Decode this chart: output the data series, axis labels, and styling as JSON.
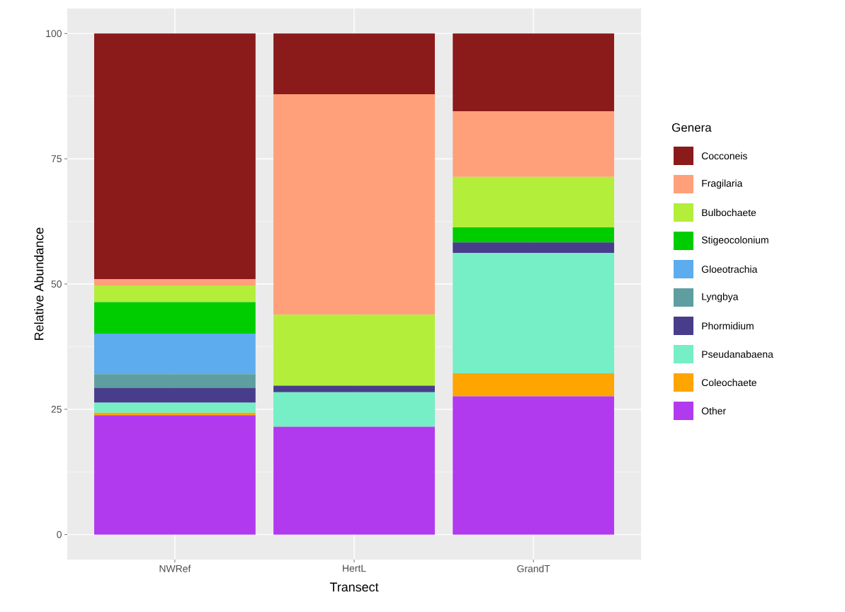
{
  "chart_data": {
    "type": "bar",
    "stacked": true,
    "xlabel": "Transect",
    "ylabel": "Relative Abundance",
    "legend_title": "Genera",
    "legend": "right",
    "grid": true,
    "categories": [
      "NWRef",
      "HertL",
      "GrandT"
    ],
    "ylim": [
      -5,
      105
    ],
    "yticks": [
      0,
      25,
      50,
      75,
      100
    ],
    "series": [
      {
        "name": "Other",
        "color": "#b23aee",
        "values": [
          23.8,
          21.5,
          27.6
        ]
      },
      {
        "name": "Coleochaete",
        "color": "#ffa500",
        "values": [
          0.5,
          0,
          4.6
        ]
      },
      {
        "name": "Pseudanabaena",
        "color": "#76eec6",
        "values": [
          2.0,
          6.9,
          24.0
        ]
      },
      {
        "name": "Phormidium",
        "color": "#483d8b",
        "values": [
          3.0,
          1.3,
          2.1
        ]
      },
      {
        "name": "Lyngbya",
        "color": "#5f9ea0",
        "values": [
          2.7,
          0,
          0
        ]
      },
      {
        "name": "Gloeotrachia",
        "color": "#5cacee",
        "values": [
          8.1,
          0,
          0
        ]
      },
      {
        "name": "Stigeocolonium",
        "color": "#00cd00",
        "values": [
          6.3,
          0,
          3.0
        ]
      },
      {
        "name": "Bulbochaete",
        "color": "#b3ee3a",
        "values": [
          3.3,
          14.2,
          10.1
        ]
      },
      {
        "name": "Fragilaria",
        "color": "#ffa07a",
        "values": [
          1.3,
          44.0,
          13.1
        ]
      },
      {
        "name": "Cocconeis",
        "color": "#8b1a1a",
        "values": [
          49.0,
          12.1,
          15.5
        ]
      }
    ]
  }
}
